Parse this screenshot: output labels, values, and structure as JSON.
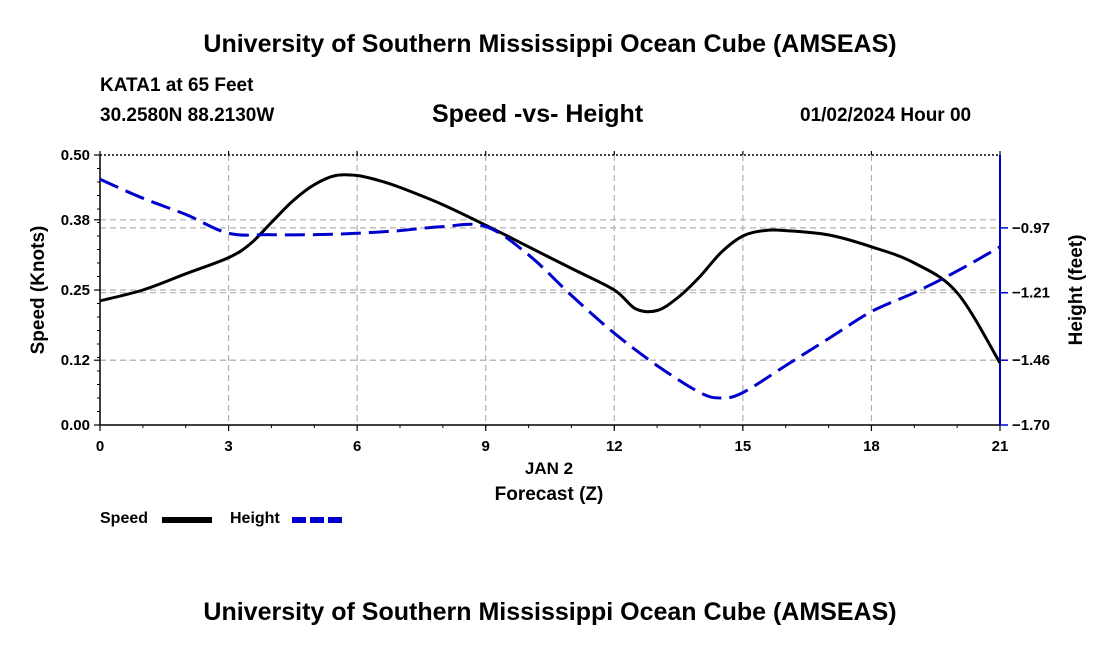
{
  "header": {
    "title": "University of Southern Mississippi Ocean Cube (AMSEAS)",
    "station": "KATA1 at 65 Feet",
    "coords": "30.2580N  88.2130W",
    "subtitle": "Speed -vs- Height",
    "datetime": "01/02/2024 Hour 00"
  },
  "footer": {
    "title": "University of Southern Mississippi Ocean Cube (AMSEAS)"
  },
  "legend": {
    "speed_label": "Speed",
    "height_label": "Height"
  },
  "colors": {
    "speed": "#000000",
    "height": "#0000cc",
    "grid": "#b0b0b0"
  },
  "chart_data": {
    "type": "line",
    "title": "Speed -vs- Height",
    "xlabel": "Forecast (Z)",
    "xlabel_date": "JAN 2",
    "ylabel_left": "Speed (Knots)",
    "ylabel_right": "Height (feet)",
    "xlim": [
      0,
      21
    ],
    "ylim_left": [
      0,
      0.5
    ],
    "ylim_right": [
      -1.7,
      -0.7
    ],
    "x_ticks": [
      "0",
      "3",
      "6",
      "9",
      "12",
      "15",
      "18",
      "21"
    ],
    "y_ticks_left": [
      "0.00",
      "0.12",
      "0.25",
      "0.38",
      "0.50"
    ],
    "y_ticks_right": [
      "-0.97",
      "-1.21",
      "-1.46",
      "-1.70"
    ],
    "grid": true,
    "legend_position": "bottom-left",
    "series": [
      {
        "name": "Speed",
        "axis": "left",
        "style": "solid",
        "x": [
          0,
          1,
          2,
          3,
          3.5,
          4,
          4.5,
          5,
          5.5,
          6,
          6.5,
          7,
          8,
          9,
          10,
          11,
          12,
          12.5,
          13,
          13.5,
          14,
          14.5,
          15,
          15.5,
          16,
          17,
          18,
          19,
          20,
          21
        ],
        "values": [
          0.23,
          0.25,
          0.28,
          0.31,
          0.335,
          0.375,
          0.415,
          0.445,
          0.462,
          0.462,
          0.453,
          0.44,
          0.408,
          0.37,
          0.33,
          0.29,
          0.25,
          0.215,
          0.212,
          0.237,
          0.275,
          0.32,
          0.35,
          0.36,
          0.36,
          0.352,
          0.33,
          0.3,
          0.245,
          0.115
        ]
      },
      {
        "name": "Height",
        "axis": "right",
        "style": "dashed",
        "x": [
          0,
          1,
          2,
          3,
          4,
          5,
          6,
          7,
          8,
          9,
          10,
          11,
          12,
          13,
          14,
          14.5,
          15,
          16,
          17,
          18,
          19,
          20,
          21
        ],
        "values": [
          -0.79,
          -0.86,
          -0.92,
          -0.99,
          -0.995,
          -0.995,
          -0.99,
          -0.98,
          -0.965,
          -0.965,
          -1.07,
          -1.22,
          -1.36,
          -1.48,
          -1.58,
          -1.6,
          -1.58,
          -1.48,
          -1.38,
          -1.28,
          -1.21,
          -1.13,
          -1.04
        ]
      }
    ]
  }
}
